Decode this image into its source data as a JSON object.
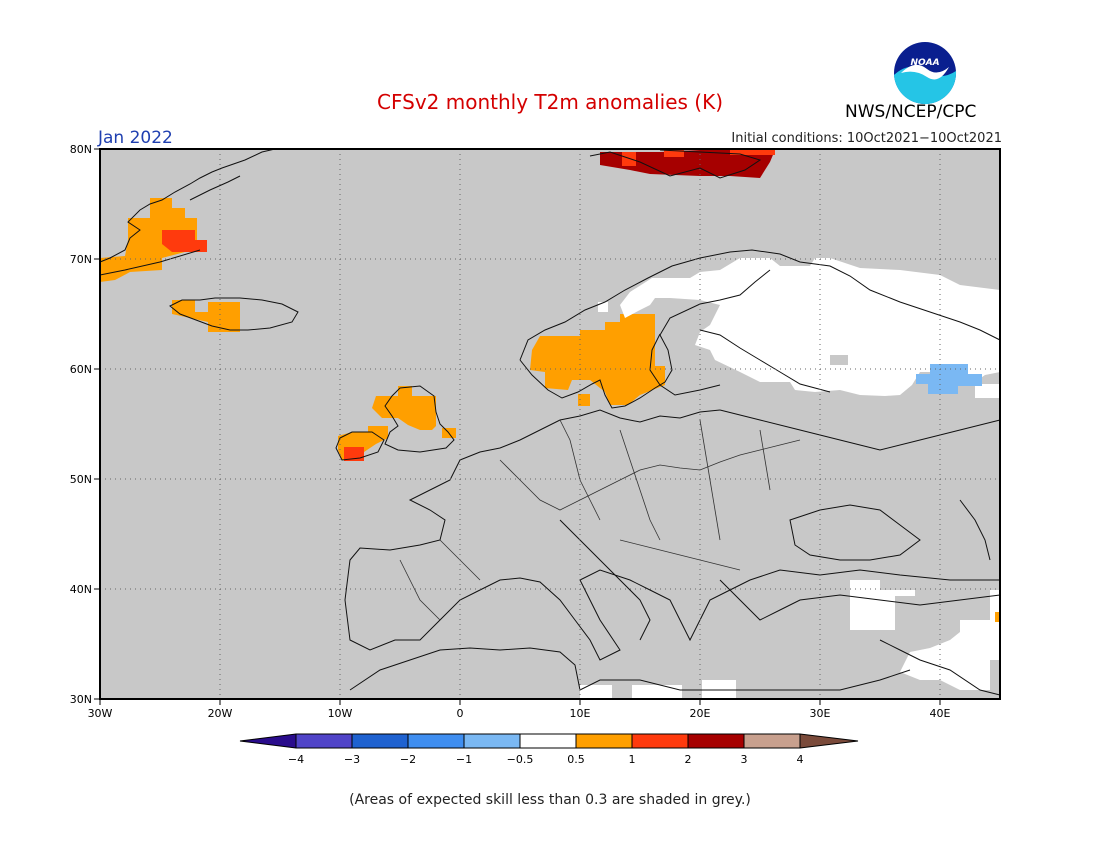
{
  "title": "CFSv2 monthly T2m anomalies (K)",
  "month": "Jan 2022",
  "initial_conditions": "Initial conditions: 10Oct2021−10Oct2021",
  "agency": "NWS/NCEP/CPC",
  "logo": {
    "text": "NOAA",
    "colors": {
      "top": "#0a1f8f",
      "bottom": "#25c5e6",
      "bird": "#ffffff"
    }
  },
  "footnote": "(Areas of expected skill less than 0.3 are shaded in grey.)",
  "map": {
    "background": "#c8c8c8",
    "grid": "dotted",
    "lon_labels": [
      "30W",
      "20W",
      "10W",
      "0",
      "10E",
      "20E",
      "30E",
      "40E"
    ],
    "lat_labels": [
      "80N",
      "70N",
      "60N",
      "50N",
      "40N",
      "30N"
    ],
    "lon_range": [
      -30,
      45
    ],
    "lat_range": [
      30,
      80
    ]
  },
  "legend": {
    "labels": [
      "−4",
      "−3",
      "−2",
      "−1",
      "−0.5",
      "0.5",
      "1",
      "2",
      "3",
      "4"
    ],
    "colors": [
      "#2a0c8c",
      "#5044c8",
      "#1f62d0",
      "#3f8ef0",
      "#7ab8f3",
      "#ffffff",
      "#ff9f00",
      "#ff3a0d",
      "#a60000",
      "#c8a08e",
      "#7a4a3a"
    ]
  },
  "anomaly_regions": [
    {
      "name": "Svalbard",
      "class": "2 to 3",
      "color": "#a60000"
    },
    {
      "name": "Greenland east coast",
      "class": "0.5 to 1",
      "color": "#ff9f00"
    },
    {
      "name": "Iceland",
      "class": "0.5 to 1",
      "color": "#ff9f00"
    },
    {
      "name": "Scandinavia",
      "class": "0.5 to 1",
      "color": "#ff9f00"
    },
    {
      "name": "British Isles",
      "class": "0.5 to 1",
      "color": "#ff9f00"
    },
    {
      "name": "NW Russia",
      "class": "-0.5 to 0.5",
      "color": "#ffffff"
    },
    {
      "name": "Central Russia",
      "class": "-1 to -0.5",
      "color": "#7ab8f3"
    }
  ]
}
